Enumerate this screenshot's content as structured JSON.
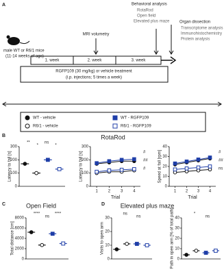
{
  "panel_a": {
    "mice": [
      "male WT or R6/1 mice",
      "(11-14 weeks of age)"
    ],
    "weeks": [
      "1. week",
      "2. week",
      "3. week"
    ],
    "mri": "MRI volumetry",
    "behavior_title": "Behavioral analysis",
    "behavior_items": [
      "RotaRod",
      "Open field",
      "Elevated plus maze"
    ],
    "organ_title": "Organ dissection",
    "organ_items": [
      "Transcriptome analysis",
      "Immunohistochemistry",
      "Protein analysis"
    ],
    "treatment": [
      "RGFP109 (30 mg/kg) or vehicle treatment",
      "(i.p. injections; 5 times a week)"
    ]
  },
  "legend": [
    {
      "name": "WT - vehicle",
      "color": "#111111",
      "filled": true
    },
    {
      "name": "R6/1 - vehicle",
      "color": "#111111",
      "filled": false
    },
    {
      "name": "WT - RGFP109",
      "color": "#1f3ea8",
      "filled": true
    },
    {
      "name": "R6/1 - RGFP109",
      "color": "#1f3ea8",
      "filled": false
    }
  ],
  "sections": [
    {
      "label": "B",
      "title": "RotaRod",
      "plots": [
        {
          "type": "bar",
          "ylabel": "Latency to fall [s]",
          "ylim": [
            0,
            300
          ],
          "yticks": [
            0,
            100,
            200,
            300
          ],
          "values": [
            170,
            100,
            200,
            130
          ],
          "annotations": [
            "**",
            "*",
            "ns",
            "*"
          ]
        },
        {
          "type": "line",
          "ylabel": "Latency to fall [s]",
          "xlabel": "Trial",
          "xticks": [
            1,
            2,
            3,
            4
          ],
          "xlim": [
            0.5,
            4.5
          ],
          "ylim": [
            0,
            300
          ],
          "yticks": [
            0,
            100,
            200,
            300
          ],
          "series": [
            [
              170,
              180,
              190,
              190
            ],
            [
              100,
              110,
              110,
              120
            ],
            [
              175,
              190,
              200,
              205
            ],
            [
              110,
              120,
              125,
              130
            ]
          ],
          "annotations": [
            "#",
            "##",
            "#"
          ]
        },
        {
          "type": "line",
          "ylabel": "Speed at fall [rpm]",
          "xlabel": "Trial",
          "xticks": [
            1,
            2,
            3,
            4
          ],
          "xlim": [
            0.5,
            4.5
          ],
          "ylim": [
            0,
            40
          ],
          "yticks": [
            0,
            10,
            20,
            30,
            40
          ],
          "series": [
            [
              22,
              24,
              26,
              28
            ],
            [
              14,
              15,
              16,
              17
            ],
            [
              23,
              25,
              27,
              29
            ],
            [
              17,
              18,
              19,
              20
            ]
          ],
          "annotations": [
            "#",
            "##",
            "ns"
          ]
        }
      ]
    },
    {
      "label": "C",
      "title": "Open Field",
      "plots": [
        {
          "type": "bar",
          "ylabel": "Total distance [cm]",
          "ylim": [
            0,
            8000
          ],
          "yticks": [
            0,
            2000,
            4000,
            6000,
            8000
          ],
          "values": [
            5200,
            2700,
            4900,
            3000
          ],
          "annotations": [
            "****",
            "ns",
            "****"
          ]
        }
      ]
    },
    {
      "label": "D",
      "title": "Elevated plus maze",
      "plots": [
        {
          "type": "bar",
          "ylabel": "Visits to open arm",
          "ylim": [
            0,
            30
          ],
          "yticks": [
            0,
            10,
            20,
            30
          ],
          "values": [
            7,
            11,
            11,
            10
          ],
          "annotations": [
            "ns",
            "ns"
          ]
        },
        {
          "type": "bar",
          "ylabel": "Path in open arm [% of total path]",
          "ylim": [
            0,
            40
          ],
          "yticks": [
            0,
            10,
            20,
            30,
            40
          ],
          "values": [
            4,
            8,
            6,
            8
          ],
          "annotations": [
            "*",
            "ns"
          ]
        }
      ]
    }
  ]
}
